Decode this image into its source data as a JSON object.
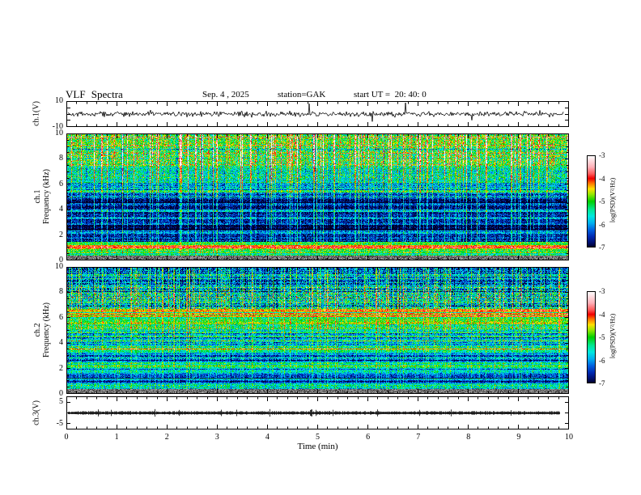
{
  "header": {
    "title": "VLF Spectra",
    "date": "Sep. 4 , 2025",
    "station": "station=GAK",
    "start_ut": "start UT =  20: 40: 0"
  },
  "xaxis": {
    "label": "Time  (min)",
    "range": [
      0,
      10
    ],
    "ticks": [
      0,
      1,
      2,
      3,
      4,
      5,
      6,
      7,
      8,
      9,
      10
    ],
    "minor_step": 0.2
  },
  "colorbar": {
    "label": "log(PSD)(V²/Hz)",
    "range_top_to_bottom": [
      -3,
      -7
    ],
    "ticks": [
      -3,
      -4,
      -5,
      -6,
      -7
    ],
    "stops": [
      [
        -3.0,
        "#ffffff"
      ],
      [
        -3.15,
        "#ffe8ea"
      ],
      [
        -3.5,
        "#ffb0b8"
      ],
      [
        -3.8,
        "#ff5a5a"
      ],
      [
        -4.0,
        "#f00000"
      ],
      [
        -4.2,
        "#ff7000"
      ],
      [
        -4.45,
        "#ffe000"
      ],
      [
        -4.7,
        "#90e800"
      ],
      [
        -5.0,
        "#00d000"
      ],
      [
        -5.35,
        "#00e890"
      ],
      [
        -5.65,
        "#00e8e0"
      ],
      [
        -5.95,
        "#00b0f0"
      ],
      [
        -6.25,
        "#0060e0"
      ],
      [
        -6.55,
        "#0028b0"
      ],
      [
        -6.8,
        "#001070"
      ],
      [
        -7.0,
        "#000028"
      ]
    ]
  },
  "chart_data": [
    {
      "type": "line",
      "name": "ch1_waveform",
      "ylabel": "ch.1(V)",
      "ylim": [
        -10,
        10
      ],
      "yticks": [
        10,
        -10
      ],
      "minor_yticks": [
        5,
        0,
        -5
      ],
      "data_end_min": 9.9,
      "noise_sigma": 1.0,
      "spike_rate": 0.015,
      "spike_max": 8,
      "line_color": "#000000",
      "seed": 42
    },
    {
      "type": "heatmap",
      "name": "ch1_spectrogram",
      "ylabel_line1": "ch.1",
      "ylabel_line2": "Frequency  (kHz)",
      "ylim": [
        0,
        10
      ],
      "yticks": [
        0,
        2,
        4,
        6,
        8,
        10
      ],
      "minor_step": 0.5,
      "row_texture": 0.3,
      "streaks": {
        "density": 0.22,
        "strength": 1.5,
        "dark_density": 0.1
      },
      "bands": [
        {
          "from": 9.0,
          "to": 10.0,
          "base": -4.9,
          "noise": 0.7,
          "streak": 1.1
        },
        {
          "from": 7.5,
          "to": 9.0,
          "base": -5.15,
          "noise": 0.8,
          "streak": 1.25
        },
        {
          "from": 6.3,
          "to": 7.5,
          "base": -5.55,
          "noise": 0.7,
          "streak": 1.05
        },
        {
          "from": 5.6,
          "to": 6.3,
          "base": -6.0,
          "noise": 0.6,
          "streak": 0.85
        },
        {
          "from": 5.0,
          "to": 5.6,
          "base": -6.25,
          "noise": 0.55,
          "streak": 0.8
        },
        {
          "from": 2.4,
          "to": 5.0,
          "base": -6.78,
          "noise": 0.5,
          "streak": 0.7
        },
        {
          "from": 1.45,
          "to": 2.4,
          "base": -6.55,
          "noise": 0.5,
          "streak": 0.6
        },
        {
          "from": 1.18,
          "to": 1.45,
          "base": -5.0,
          "noise": 0.5,
          "streak": 0.3
        },
        {
          "from": 0.95,
          "to": 1.18,
          "base": -4.05,
          "noise": 0.4,
          "streak": 0.2
        },
        {
          "from": 0.6,
          "to": 0.95,
          "base": -4.85,
          "noise": 0.5,
          "streak": 0.3
        },
        {
          "from": 0.35,
          "to": 0.6,
          "base": -5.4,
          "noise": 0.5,
          "streak": 0.3
        },
        {
          "from": 0.0,
          "to": 0.35,
          "grey": true
        }
      ],
      "hlines": [
        {
          "f": 6.2,
          "b": 0.5
        },
        {
          "f": 5.45,
          "b": 0.9
        },
        {
          "f": 4.95,
          "b": 0.6
        },
        {
          "f": 4.4,
          "b": 0.7
        },
        {
          "f": 3.9,
          "b": 0.6
        },
        {
          "f": 3.35,
          "b": 0.7
        },
        {
          "f": 2.85,
          "b": 0.6
        },
        {
          "f": 2.2,
          "b": 0.5
        }
      ],
      "seed": 11
    },
    {
      "type": "heatmap",
      "name": "ch2_spectrogram",
      "ylabel_line1": "ch.2",
      "ylabel_line2": "Frequency  (kHz)",
      "ylim": [
        0,
        10
      ],
      "yticks": [
        0,
        2,
        4,
        6,
        8,
        10
      ],
      "minor_step": 0.5,
      "row_texture": 0.42,
      "streaks": {
        "density": 0.26,
        "strength": 1.1,
        "dark_density": 0.12
      },
      "bands": [
        {
          "from": 8.4,
          "to": 10.0,
          "base": -6.15,
          "noise": 0.7,
          "streak": 1.0
        },
        {
          "from": 6.7,
          "to": 8.4,
          "base": -5.7,
          "noise": 0.9,
          "streak": 1.15
        },
        {
          "from": 6.05,
          "to": 6.7,
          "base": -4.55,
          "noise": 0.45,
          "streak": 0.4,
          "xgrad": 0.4
        },
        {
          "from": 5.5,
          "to": 6.05,
          "base": -5.05,
          "noise": 0.5,
          "streak": 0.5,
          "xgrad": 0.3
        },
        {
          "from": 4.4,
          "to": 5.5,
          "base": -5.65,
          "noise": 0.6,
          "streak": 0.6
        },
        {
          "from": 3.6,
          "to": 4.4,
          "base": -5.85,
          "noise": 0.6,
          "streak": 0.6
        },
        {
          "from": 3.25,
          "to": 3.6,
          "base": -5.35,
          "noise": 0.5,
          "streak": 0.5
        },
        {
          "from": 2.75,
          "to": 3.25,
          "base": -6.3,
          "noise": 0.5,
          "streak": 0.5
        },
        {
          "from": 2.45,
          "to": 2.75,
          "base": -5.9,
          "noise": 0.5,
          "streak": 0.5
        },
        {
          "from": 2.05,
          "to": 2.45,
          "base": -5.45,
          "noise": 0.5,
          "streak": 0.5
        },
        {
          "from": 1.5,
          "to": 2.05,
          "base": -6.0,
          "noise": 0.5,
          "streak": 0.5
        },
        {
          "from": 0.75,
          "to": 1.5,
          "base": -6.6,
          "noise": 0.45,
          "streak": 0.45
        },
        {
          "from": 0.35,
          "to": 0.75,
          "base": -5.5,
          "noise": 0.6,
          "streak": 0.4
        },
        {
          "from": 0.0,
          "to": 0.35,
          "grey": true
        }
      ],
      "hlines": [
        {
          "f": 5.2,
          "b": 0.5
        },
        {
          "f": 4.7,
          "b": -0.4
        },
        {
          "f": 4.15,
          "b": 0.5
        },
        {
          "f": 3.45,
          "b": 0.5
        },
        {
          "f": 2.2,
          "b": 0.5
        },
        {
          "f": 1.75,
          "b": 0.4
        }
      ],
      "seed": 23
    },
    {
      "type": "line",
      "name": "ch3_waveform",
      "ylabel": "ch.3(V)",
      "ylim": [
        -7.5,
        7.5
      ],
      "yticks": [
        5,
        -5
      ],
      "minor_yticks": [
        0
      ],
      "data_end_min": 9.82,
      "style": "dense-band",
      "band_halfwidth": 0.6,
      "line_color": "#000000",
      "seed": 99
    }
  ]
}
